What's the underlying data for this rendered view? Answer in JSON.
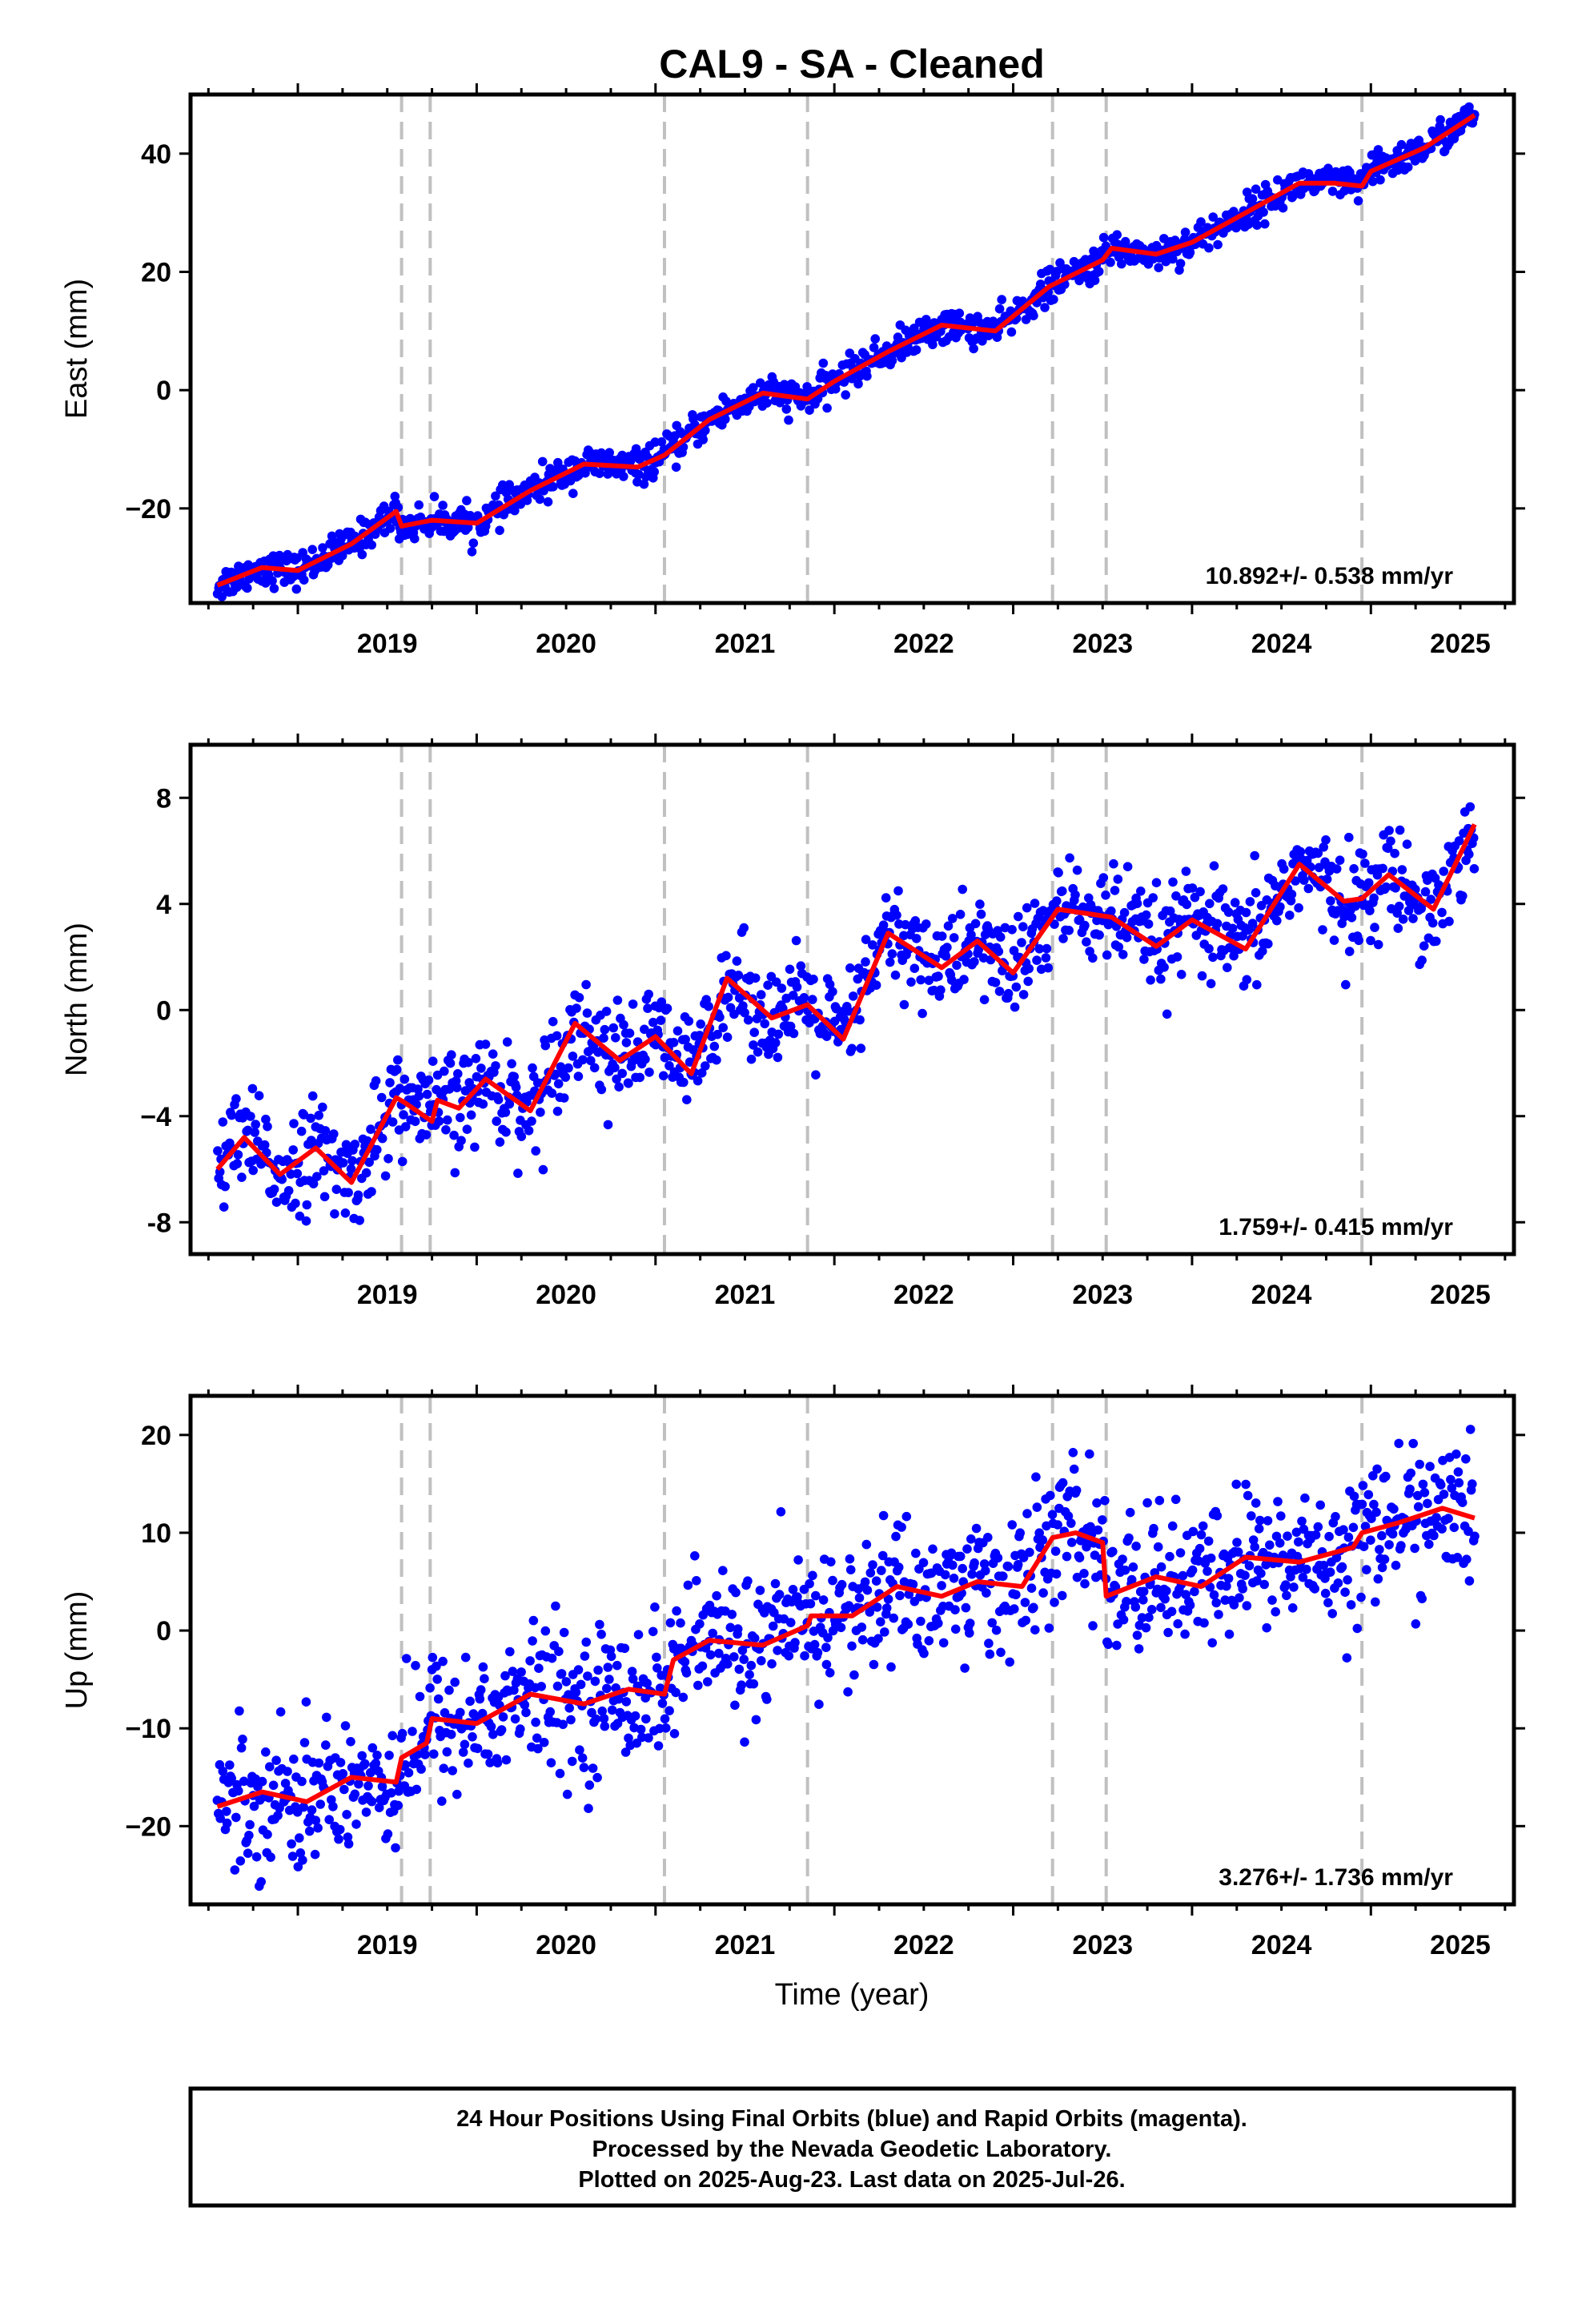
{
  "title": "CAL9  - SA - Cleaned",
  "chart_data": [
    {
      "type": "scatter",
      "component": "East",
      "ylabel": "East (mm)",
      "xlim": [
        2018.4,
        2025.8
      ],
      "ylim": [
        -36,
        50
      ],
      "yticks": [
        -20,
        0,
        20,
        40
      ],
      "yticklabels": [
        "−20",
        "0",
        "20",
        "40"
      ],
      "rate_text": "10.892+/- 0.538 mm/yr",
      "trend": {
        "x": [
          2018.55,
          2018.8,
          2019.0,
          2019.3,
          2019.55,
          2019.58,
          2019.75,
          2020.0,
          2020.3,
          2020.6,
          2020.9,
          2021.05,
          2021.3,
          2021.6,
          2021.85,
          2022.0,
          2022.3,
          2022.6,
          2022.9,
          2023.2,
          2023.5,
          2023.55,
          2023.8,
          2024.0,
          2024.3,
          2024.6,
          2024.8,
          2024.95,
          2025.0,
          2025.3,
          2025.58
        ],
        "y": [
          -33,
          -30,
          -30.5,
          -26,
          -20.5,
          -23,
          -22,
          -22.5,
          -17,
          -12.5,
          -13,
          -11,
          -5,
          -0.5,
          -1.5,
          1.5,
          6.5,
          11,
          10,
          17.5,
          22,
          24,
          23,
          25,
          30,
          35,
          35,
          34.5,
          37,
          41,
          46.5
        ],
        "color": "#ff0000"
      },
      "noise_sd": 1.4
    },
    {
      "type": "scatter",
      "component": "North",
      "ylabel": "North (mm)",
      "xlim": [
        2018.4,
        2025.8
      ],
      "ylim": [
        -9.2,
        10
      ],
      "yticks": [
        -8,
        -4,
        0,
        4,
        8
      ],
      "yticklabels": [
        "-8",
        "−4",
        "0",
        "4",
        "8"
      ],
      "rate_text": "1.759+/- 0.415 mm/yr",
      "trend": {
        "x": [
          2018.55,
          2018.7,
          2018.9,
          2019.1,
          2019.3,
          2019.55,
          2019.6,
          2019.75,
          2019.78,
          2019.9,
          2020.05,
          2020.3,
          2020.55,
          2020.8,
          2021.0,
          2021.2,
          2021.4,
          2021.65,
          2021.85,
          2022.05,
          2022.3,
          2022.6,
          2022.8,
          2023.0,
          2023.25,
          2023.45,
          2023.55,
          2023.8,
          2024.0,
          2024.3,
          2024.6,
          2024.85,
          2024.95,
          2025.1,
          2025.35,
          2025.58
        ],
        "y": [
          -6,
          -4.8,
          -6.2,
          -5.2,
          -6.5,
          -3.3,
          -3.5,
          -4.2,
          -3.4,
          -3.7,
          -2.6,
          -3.8,
          -0.5,
          -1.9,
          -1.0,
          -2.4,
          1.2,
          -0.3,
          0.2,
          -1.1,
          2.9,
          1.6,
          2.6,
          1.4,
          3.8,
          3.6,
          3.5,
          2.4,
          3.4,
          2.3,
          5.5,
          4.1,
          4.2,
          5.1,
          3.8,
          7.0
        ],
        "color": "#ff0000"
      },
      "noise_sd": 0.95
    },
    {
      "type": "scatter",
      "component": "Up",
      "ylabel": "Up (mm)",
      "xlabel": "Time (year)",
      "xlim": [
        2018.4,
        2025.8
      ],
      "ylim": [
        -28,
        24
      ],
      "yticks": [
        -20,
        -10,
        0,
        10,
        20
      ],
      "yticklabels": [
        "−20",
        "−10",
        "0",
        "10",
        "20"
      ],
      "rate_text": "3.276+/- 1.736 mm/yr",
      "trend": {
        "x": [
          2018.55,
          2018.8,
          2019.05,
          2019.3,
          2019.55,
          2019.58,
          2019.72,
          2019.75,
          2020.0,
          2020.3,
          2020.6,
          2020.85,
          2021.05,
          2021.1,
          2021.3,
          2021.6,
          2021.85,
          2021.87,
          2022.1,
          2022.35,
          2022.6,
          2022.8,
          2023.05,
          2023.22,
          2023.35,
          2023.5,
          2023.52,
          2023.8,
          2024.05,
          2024.3,
          2024.6,
          2024.9,
          2024.95,
          2025.15,
          2025.4,
          2025.58
        ],
        "y": [
          -18,
          -16.5,
          -17.5,
          -15,
          -15.5,
          -13,
          -11.5,
          -9,
          -9.5,
          -6.5,
          -7.5,
          -6,
          -6.5,
          -3,
          -1,
          -1.5,
          0.5,
          1.5,
          1.5,
          4.5,
          3.5,
          5,
          4.5,
          9.5,
          10,
          9,
          3.5,
          5.5,
          4.5,
          7.5,
          7,
          8.5,
          10,
          11,
          12.5,
          11.5
        ],
        "color": "#ff0000"
      },
      "noise_sd": 3.6
    }
  ],
  "xticks": [
    2019,
    2020,
    2021,
    2022,
    2023,
    2024,
    2025
  ],
  "xticklabels": [
    "2019",
    "2020",
    "2021",
    "2022",
    "2023",
    "2024",
    "2025"
  ],
  "event_lines": [
    2019.58,
    2019.74,
    2021.05,
    2021.85,
    2023.22,
    2023.52,
    2024.95
  ],
  "point_color": "#0000ff",
  "footer": {
    "line1": "24 Hour Positions Using Final Orbits (blue) and Rapid Orbits (magenta).",
    "line2": "Processed by the Nevada Geodetic Laboratory.",
    "line3": "Plotted on 2025-Aug-23. Last data on 2025-Jul-26."
  }
}
